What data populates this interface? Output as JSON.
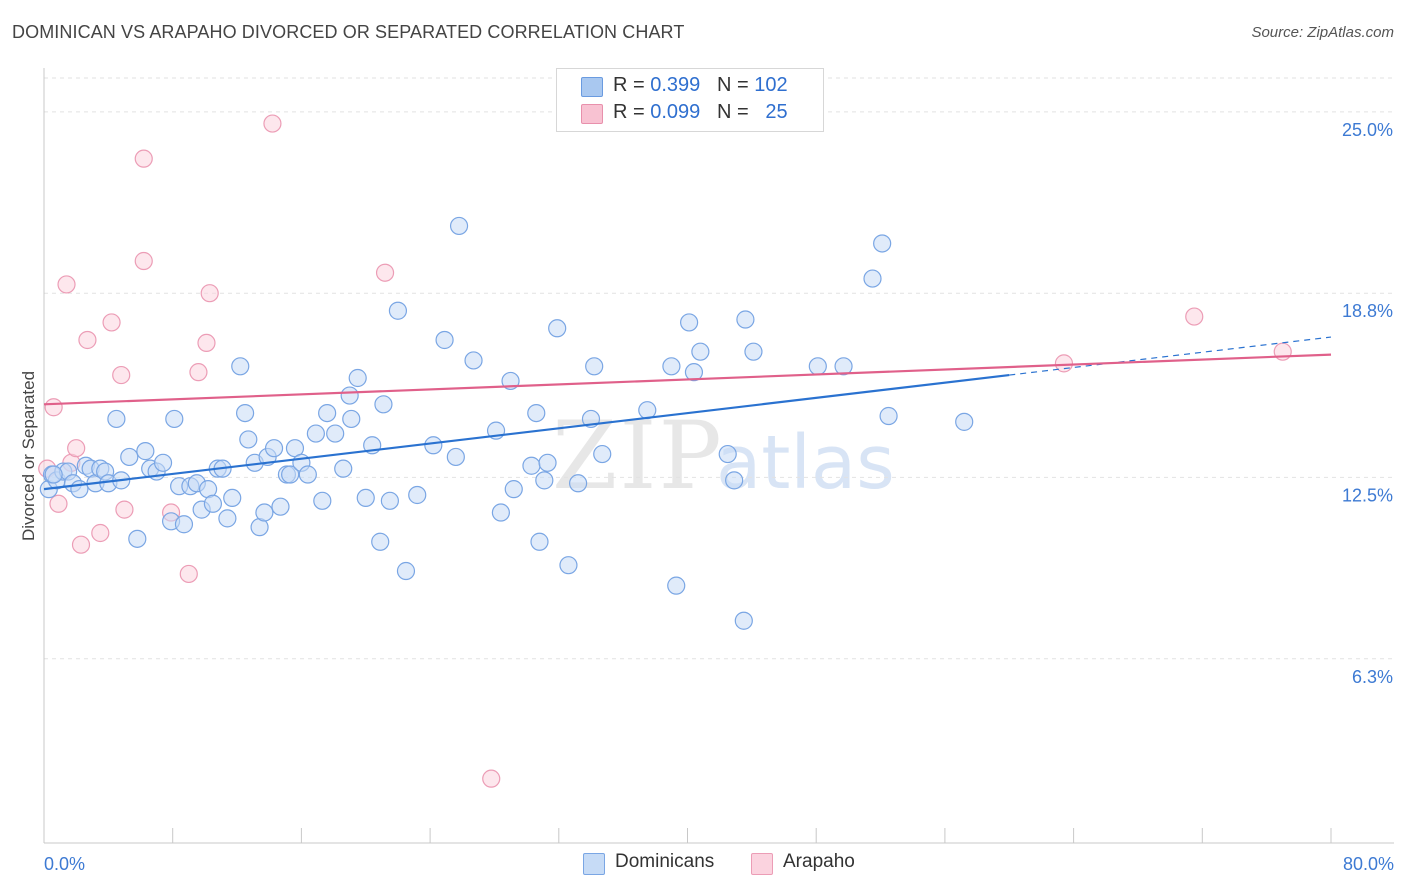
{
  "title": "DOMINICAN VS ARAPAHO DIVORCED OR SEPARATED CORRELATION CHART",
  "source": "Source: ZipAtlas.com",
  "watermark": {
    "zip": "ZIP",
    "atlas": "atlas"
  },
  "legend": {
    "rows": [
      {
        "r_label": "R =",
        "r_value": "0.399",
        "n_label": "N =",
        "n_value": "102",
        "color": "#a9c8f0",
        "border": "#6a9be0"
      },
      {
        "r_label": "R =",
        "r_value": "0.099",
        "n_label": "N =",
        "n_value": "25",
        "color": "#f8c2d2",
        "border": "#e890ac"
      }
    ]
  },
  "bottom_legend": [
    {
      "label": "Dominicans",
      "color": "#c6dbf6",
      "border": "#7aa6e4"
    },
    {
      "label": "Arapaho",
      "color": "#fbd3df",
      "border": "#ec9db6"
    }
  ],
  "chart_data": {
    "type": "scatter",
    "title": "DOMINICAN VS ARAPAHO DIVORCED OR SEPARATED CORRELATION CHART",
    "xlabel": "",
    "ylabel": "Divorced or Separated",
    "xlim": [
      0,
      80
    ],
    "ylim": [
      0,
      26.5
    ],
    "x_tick_labels": {
      "left": "0.0%",
      "right": "80.0%"
    },
    "y_ticks": [
      {
        "value": 6.3,
        "label": "6.3%"
      },
      {
        "value": 12.5,
        "label": "12.5%"
      },
      {
        "value": 18.8,
        "label": "18.8%"
      },
      {
        "value": 25.0,
        "label": "25.0%"
      }
    ],
    "grid": true,
    "series": [
      {
        "name": "Dominicans",
        "color": "#7aa6e4",
        "fill": "#c6dbf6",
        "line_color": "#2a72d0",
        "trend": {
          "x0": 0,
          "y0": 12.1,
          "x1": 60,
          "y1": 16.0,
          "dash_to_x": 80,
          "dash_to_y": 17.3
        },
        "points": [
          [
            0.3,
            12.1
          ],
          [
            0.5,
            12.6
          ],
          [
            0.8,
            12.4
          ],
          [
            1.2,
            12.7
          ],
          [
            1.5,
            12.7
          ],
          [
            1.8,
            12.3
          ],
          [
            2.2,
            12.1
          ],
          [
            2.6,
            12.9
          ],
          [
            2.9,
            12.8
          ],
          [
            3.2,
            12.3
          ],
          [
            3.5,
            12.8
          ],
          [
            3.8,
            12.7
          ],
          [
            4.0,
            12.3
          ],
          [
            4.5,
            14.5
          ],
          [
            4.8,
            12.4
          ],
          [
            5.3,
            13.2
          ],
          [
            5.8,
            10.4
          ],
          [
            6.3,
            13.4
          ],
          [
            6.6,
            12.8
          ],
          [
            7.0,
            12.7
          ],
          [
            7.4,
            13.0
          ],
          [
            7.9,
            11.0
          ],
          [
            8.1,
            14.5
          ],
          [
            8.4,
            12.2
          ],
          [
            8.7,
            10.9
          ],
          [
            9.1,
            12.2
          ],
          [
            9.5,
            12.3
          ],
          [
            9.8,
            11.4
          ],
          [
            10.2,
            12.1
          ],
          [
            10.5,
            11.6
          ],
          [
            10.8,
            12.8
          ],
          [
            11.1,
            12.8
          ],
          [
            11.4,
            11.1
          ],
          [
            11.7,
            11.8
          ],
          [
            12.2,
            16.3
          ],
          [
            12.5,
            14.7
          ],
          [
            12.7,
            13.8
          ],
          [
            13.1,
            13.0
          ],
          [
            13.4,
            10.8
          ],
          [
            13.7,
            11.3
          ],
          [
            13.9,
            13.2
          ],
          [
            14.3,
            13.5
          ],
          [
            14.7,
            11.5
          ],
          [
            15.1,
            12.6
          ],
          [
            15.3,
            12.6
          ],
          [
            15.6,
            13.5
          ],
          [
            16.0,
            13.0
          ],
          [
            16.4,
            12.6
          ],
          [
            16.9,
            14.0
          ],
          [
            17.3,
            11.7
          ],
          [
            17.6,
            14.7
          ],
          [
            18.1,
            14.0
          ],
          [
            18.6,
            12.8
          ],
          [
            19.0,
            15.3
          ],
          [
            19.1,
            14.5
          ],
          [
            19.5,
            15.9
          ],
          [
            20.0,
            11.8
          ],
          [
            20.4,
            13.6
          ],
          [
            20.9,
            10.3
          ],
          [
            21.1,
            15.0
          ],
          [
            21.5,
            11.7
          ],
          [
            22.0,
            18.2
          ],
          [
            22.5,
            9.3
          ],
          [
            23.2,
            11.9
          ],
          [
            24.2,
            13.6
          ],
          [
            24.9,
            17.2
          ],
          [
            25.6,
            13.2
          ],
          [
            25.8,
            21.1
          ],
          [
            26.7,
            16.5
          ],
          [
            28.1,
            14.1
          ],
          [
            28.4,
            11.3
          ],
          [
            29.0,
            15.8
          ],
          [
            29.2,
            12.1
          ],
          [
            30.3,
            12.9
          ],
          [
            30.6,
            14.7
          ],
          [
            30.8,
            10.3
          ],
          [
            31.1,
            12.4
          ],
          [
            31.3,
            13.0
          ],
          [
            31.9,
            17.6
          ],
          [
            32.6,
            9.5
          ],
          [
            33.2,
            12.3
          ],
          [
            34.0,
            14.5
          ],
          [
            34.2,
            16.3
          ],
          [
            34.7,
            13.3
          ],
          [
            37.5,
            14.8
          ],
          [
            39.0,
            16.3
          ],
          [
            39.3,
            8.8
          ],
          [
            40.1,
            17.8
          ],
          [
            40.4,
            16.1
          ],
          [
            40.8,
            16.8
          ],
          [
            42.5,
            13.3
          ],
          [
            42.9,
            12.4
          ],
          [
            43.5,
            7.6
          ],
          [
            43.6,
            17.9
          ],
          [
            44.1,
            16.8
          ],
          [
            48.1,
            16.3
          ],
          [
            49.7,
            16.3
          ],
          [
            51.5,
            19.3
          ],
          [
            52.1,
            20.5
          ],
          [
            52.5,
            14.6
          ],
          [
            57.2,
            14.4
          ],
          [
            0.6,
            12.6
          ]
        ]
      },
      {
        "name": "Arapaho",
        "color": "#ec9db6",
        "fill": "#fbd3df",
        "line_color": "#e0608a",
        "trend": {
          "x0": 0,
          "y0": 15.0,
          "x1": 80,
          "y1": 16.7
        },
        "points": [
          [
            0.2,
            12.8
          ],
          [
            0.6,
            14.9
          ],
          [
            0.9,
            11.6
          ],
          [
            1.4,
            19.1
          ],
          [
            1.7,
            13.0
          ],
          [
            2.0,
            13.5
          ],
          [
            2.3,
            10.2
          ],
          [
            2.7,
            17.2
          ],
          [
            3.5,
            10.6
          ],
          [
            4.2,
            17.8
          ],
          [
            4.8,
            16.0
          ],
          [
            5.0,
            11.4
          ],
          [
            6.2,
            23.4
          ],
          [
            6.2,
            19.9
          ],
          [
            7.9,
            11.3
          ],
          [
            9.0,
            9.2
          ],
          [
            9.6,
            16.1
          ],
          [
            10.1,
            17.1
          ],
          [
            10.3,
            18.8
          ],
          [
            14.2,
            24.6
          ],
          [
            21.2,
            19.5
          ],
          [
            27.8,
            2.2
          ],
          [
            63.4,
            16.4
          ],
          [
            71.5,
            18.0
          ],
          [
            77.0,
            16.8
          ]
        ]
      }
    ]
  }
}
